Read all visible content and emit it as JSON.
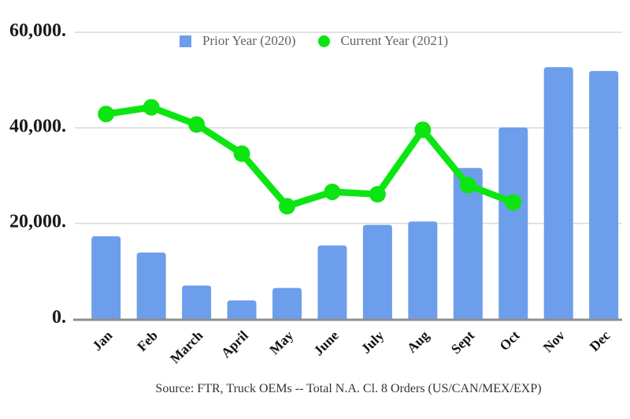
{
  "legend": {
    "items": [
      {
        "label": "Prior Year (2020)",
        "color": "#6d9eeb",
        "shape": "square"
      },
      {
        "label": "Current Year (2021)",
        "color": "#0ce512",
        "shape": "circle"
      }
    ]
  },
  "source_note": "Source: FTR, Truck OEMs -- Total N.A. Cl. 8 Orders (US/CAN/MEX/EXP)",
  "colors": {
    "bar": "#6d9eeb",
    "line": "#0ce512",
    "gridline": "#d9d9d9",
    "axis_line": "#8f8f8f",
    "axis_text": "#1a1a1a",
    "legend_text": "#616161",
    "source_text": "#333333"
  },
  "chart_data": {
    "type": "combo",
    "title": "",
    "xlabel": "",
    "ylabel": "",
    "grid": true,
    "legend_position": "top",
    "ylim": [
      0,
      60000
    ],
    "yticks": [
      {
        "value": 0,
        "label": "0."
      },
      {
        "value": 20000,
        "label": "20,000."
      },
      {
        "value": 40000,
        "label": "40,000."
      },
      {
        "value": 60000,
        "label": "60,000."
      }
    ],
    "categories": [
      "Jan",
      "Feb",
      "March",
      "April",
      "May",
      "June",
      "July",
      "Aug",
      "Sept",
      "Oct",
      "Nov",
      "Dec"
    ],
    "series": [
      {
        "name": "Prior Year (2020)",
        "type": "bar",
        "color": "#6d9eeb",
        "values": [
          17300,
          13900,
          7000,
          3900,
          6500,
          15400,
          19700,
          20400,
          31600,
          40100,
          52700,
          51900
        ]
      },
      {
        "name": "Current Year (2021)",
        "type": "line",
        "color": "#0ce512",
        "values": [
          42900,
          44300,
          40700,
          34600,
          23600,
          26600,
          26100,
          39600,
          28000,
          24400,
          null,
          null
        ]
      }
    ]
  }
}
